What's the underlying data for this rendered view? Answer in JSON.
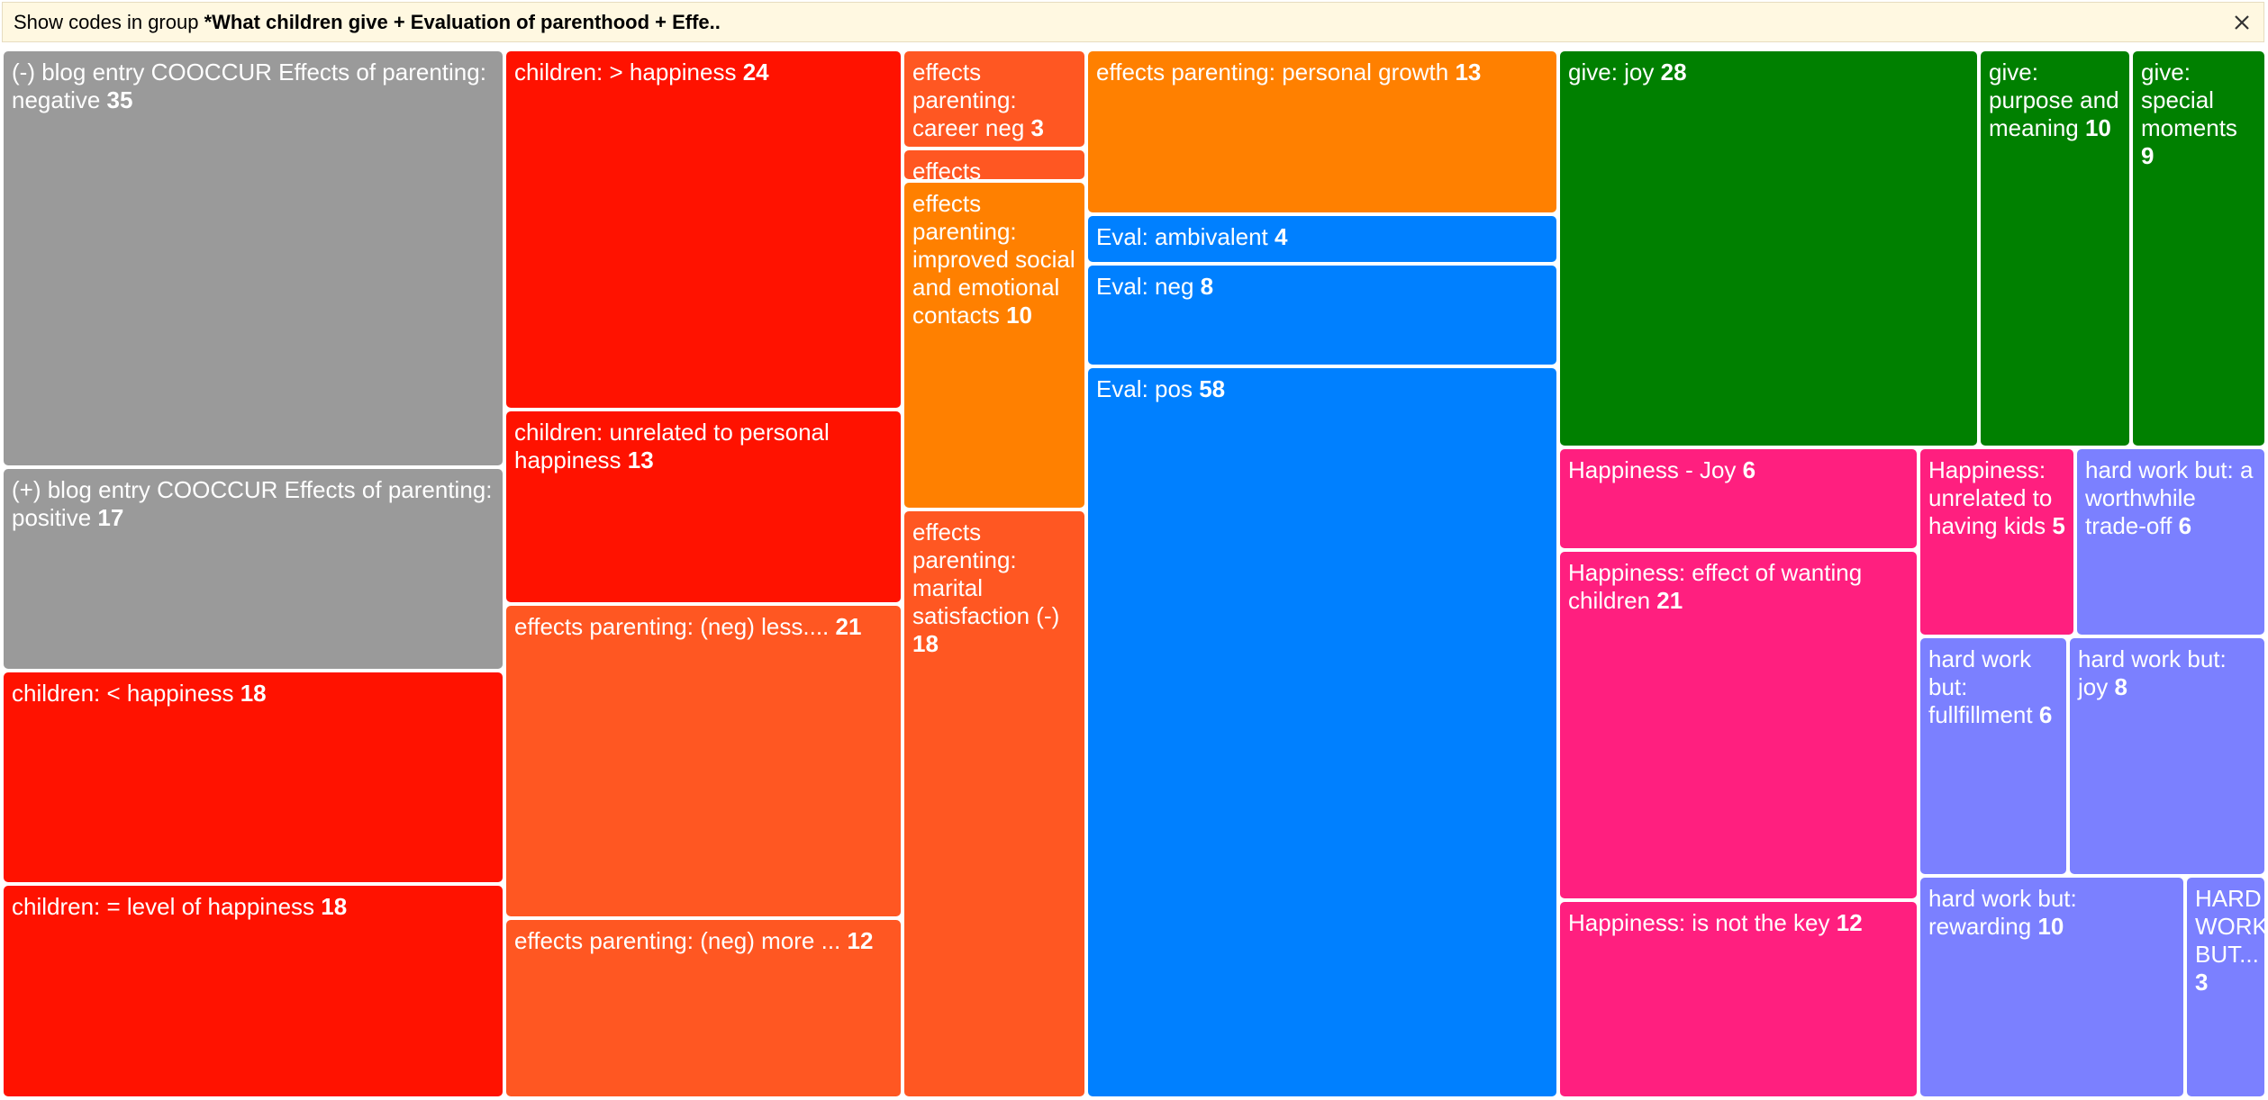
{
  "header": {
    "prefix": "Show codes in group ",
    "group_name": "*What children give + Evaluation of parenthood + Effe..",
    "close_icon": "close-icon"
  },
  "colors": {
    "gray": "#9a9a9a",
    "red": "#ff1200",
    "orange_red": "#ff5722",
    "orange": "#ff8000",
    "blue": "#0080ff",
    "green": "#008000",
    "pink": "#ff1f7f",
    "periwinkle": "#7b80ff"
  },
  "codes": [
    {
      "label": "(-) blog entry COOCCUR Effects of parenting: negative",
      "count": "35",
      "color": "#9a9a9a"
    },
    {
      "label": "(+) blog entry COOCCUR Effects of parenting: positive",
      "count": "17",
      "color": "#9a9a9a"
    },
    {
      "label": "children: < happiness",
      "count": "18",
      "color": "#ff1200"
    },
    {
      "label": "children: = level of happiness",
      "count": "18",
      "color": "#ff1200"
    },
    {
      "label": "children: > happiness",
      "count": "24",
      "color": "#ff1200"
    },
    {
      "label": "children: unrelated to personal happiness",
      "count": "13",
      "color": "#ff1200"
    },
    {
      "label": "effects parenting: (neg) less....",
      "count": "21",
      "color": "#ff5722"
    },
    {
      "label": "effects parenting: (neg) more ...",
      "count": "12",
      "color": "#ff5722"
    },
    {
      "label": "effects parenting: career neg",
      "count": "3",
      "color": "#ff5722"
    },
    {
      "label": "effects",
      "count": "",
      "color": "#ff5722"
    },
    {
      "label": "effects parenting: improved social and emotional contacts",
      "count": "10",
      "color": "#ff8000"
    },
    {
      "label": "effects parenting: marital satisfaction (-)",
      "count": "18",
      "color": "#ff5722"
    },
    {
      "label": "effects parenting: personal growth",
      "count": "13",
      "color": "#ff8000"
    },
    {
      "label": "Eval: ambivalent",
      "count": "4",
      "color": "#0080ff"
    },
    {
      "label": "Eval: neg",
      "count": "8",
      "color": "#0080ff"
    },
    {
      "label": "Eval: pos",
      "count": "58",
      "color": "#0080ff"
    },
    {
      "label": "give: joy",
      "count": "28",
      "color": "#008000"
    },
    {
      "label": "give: purpose and meaning",
      "count": "10",
      "color": "#008000"
    },
    {
      "label": "give: special moments",
      "count": "9",
      "color": "#008000"
    },
    {
      "label": "Happiness - Joy",
      "count": "6",
      "color": "#ff1f7f"
    },
    {
      "label": "Happiness: effect of wanting children",
      "count": "21",
      "color": "#ff1f7f"
    },
    {
      "label": "Happiness: is not the key",
      "count": "12",
      "color": "#ff1f7f"
    },
    {
      "label": "Happiness: unrelated to having kids",
      "count": "5",
      "color": "#ff1f7f"
    },
    {
      "label": "hard work but: a worthwhile trade-off",
      "count": "6",
      "color": "#7b80ff"
    },
    {
      "label": "hard work but: fullfillment",
      "count": "6",
      "color": "#7b80ff"
    },
    {
      "label": "hard work but: joy",
      "count": "8",
      "color": "#7b80ff"
    },
    {
      "label": "hard work but: rewarding",
      "count": "10",
      "color": "#7b80ff"
    },
    {
      "label": "HARD WORK BUT...",
      "count": "3",
      "color": "#7b80ff"
    }
  ]
}
